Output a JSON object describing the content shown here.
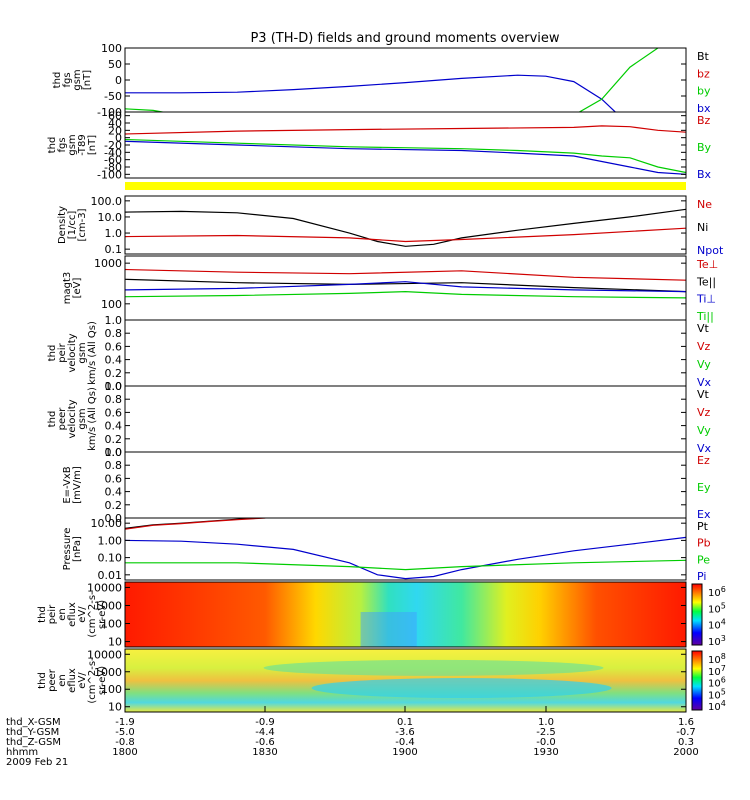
{
  "title": "P3 (TH-D) fields and ground moments overview",
  "colors": {
    "black": "#000000",
    "red": "#d00000",
    "green": "#00cc00",
    "blue": "#0000cc",
    "yellow": "#ffff00"
  },
  "chart_data": {
    "type": "line",
    "x_range": [
      "18:00",
      "20:00"
    ],
    "panels": [
      {
        "ylabel": [
          "thd",
          "fgs",
          "gsm",
          "[nT]"
        ],
        "ylim": [
          -100,
          100
        ],
        "log": false,
        "ticks": [
          "100",
          "50",
          "0",
          "-50",
          "-100"
        ],
        "tick_vals": [
          100,
          50,
          0,
          -50,
          -100
        ],
        "legend": [
          {
            "name": "Bt",
            "color": "#000000"
          },
          {
            "name": "bz",
            "color": "#d00000"
          },
          {
            "name": "by",
            "color": "#00cc00"
          },
          {
            "name": "bx",
            "color": "#0000cc"
          }
        ],
        "series": [
          {
            "name": "bx",
            "color": "#0000cc",
            "x": [
              0,
              0.1,
              0.2,
              0.3,
              0.4,
              0.5,
              0.6,
              0.7,
              0.75,
              0.8,
              0.85,
              0.88
            ],
            "y": [
              -40,
              -40,
              -38,
              -30,
              -20,
              -8,
              5,
              15,
              12,
              -5,
              -60,
              -110
            ]
          },
          {
            "name": "by",
            "color": "#00cc00",
            "x": [
              0,
              0.05,
              0.1,
              0.8,
              0.85,
              0.9,
              0.95
            ],
            "y": [
              -90,
              -95,
              -110,
              -110,
              -60,
              40,
              100
            ]
          }
        ]
      },
      {
        "ylabel": [
          "thd",
          "fgs",
          "gsm",
          "-T89",
          "[nT]"
        ],
        "ylim": [
          -110,
          70
        ],
        "log": false,
        "ticks": [
          "60",
          "40",
          "20",
          "0",
          "-20",
          "-40",
          "-60",
          "-80",
          "-100"
        ],
        "tick_vals": [
          60,
          40,
          20,
          0,
          -20,
          -40,
          -60,
          -80,
          -100
        ],
        "legend": [
          {
            "name": "Bz",
            "color": "#d00000"
          },
          {
            "name": "By",
            "color": "#00cc00"
          },
          {
            "name": "Bx",
            "color": "#0000cc"
          }
        ],
        "series": [
          {
            "name": "Bz",
            "color": "#d00000",
            "x": [
              0,
              0.2,
              0.4,
              0.6,
              0.8,
              0.85,
              0.9,
              0.95,
              1
            ],
            "y": [
              10,
              18,
              22,
              25,
              28,
              32,
              30,
              20,
              15
            ]
          },
          {
            "name": "By",
            "color": "#00cc00",
            "x": [
              0,
              0.2,
              0.4,
              0.6,
              0.7,
              0.8,
              0.85,
              0.9,
              0.95,
              1
            ],
            "y": [
              -5,
              -15,
              -25,
              -30,
              -35,
              -42,
              -50,
              -55,
              -80,
              -95
            ]
          },
          {
            "name": "Bx",
            "color": "#0000cc",
            "x": [
              0,
              0.2,
              0.4,
              0.6,
              0.7,
              0.8,
              0.85,
              0.9,
              0.95,
              1
            ],
            "y": [
              -10,
              -20,
              -30,
              -35,
              -42,
              -50,
              -65,
              -80,
              -95,
              -100
            ]
          }
        ]
      },
      {
        "ylabel": [
          "Density",
          "[1/cc]",
          "[cm-3]"
        ],
        "ylim": [
          0.05,
          200
        ],
        "log": true,
        "ticks": [
          "100.0",
          "10.0",
          "1.0",
          "0.1"
        ],
        "tick_vals": [
          100,
          10,
          1,
          0.1
        ],
        "legend": [
          {
            "name": "Ne",
            "color": "#d00000"
          },
          {
            "name": "Ni",
            "color": "#000000"
          },
          {
            "name": "Npot",
            "color": "#0000cc"
          }
        ],
        "series": [
          {
            "name": "Ni",
            "color": "#000000",
            "x": [
              0,
              0.1,
              0.2,
              0.3,
              0.4,
              0.45,
              0.5,
              0.55,
              0.6,
              0.7,
              0.8,
              0.9,
              1
            ],
            "y": [
              20,
              22,
              18,
              8,
              1,
              0.3,
              0.15,
              0.2,
              0.5,
              1.5,
              4,
              10,
              30
            ]
          },
          {
            "name": "Ne",
            "color": "#d00000",
            "x": [
              0,
              0.2,
              0.4,
              0.5,
              0.6,
              0.8,
              1
            ],
            "y": [
              0.6,
              0.7,
              0.5,
              0.3,
              0.4,
              0.8,
              2
            ]
          }
        ]
      },
      {
        "ylabel": [
          "magt3",
          "[eV]"
        ],
        "ylim": [
          40,
          1500
        ],
        "log": true,
        "ticks": [
          "1000",
          "100"
        ],
        "tick_vals": [
          1000,
          100
        ],
        "legend": [
          {
            "name": "Te⊥",
            "color": "#d00000"
          },
          {
            "name": "Te||",
            "color": "#000000"
          },
          {
            "name": "Ti⊥",
            "color": "#0000cc"
          },
          {
            "name": "Ti||",
            "color": "#00cc00"
          }
        ],
        "series": [
          {
            "name": "Te⊥",
            "color": "#d00000",
            "x": [
              0,
              0.2,
              0.4,
              0.6,
              0.8,
              1
            ],
            "y": [
              700,
              600,
              550,
              650,
              450,
              380
            ]
          },
          {
            "name": "Te||",
            "color": "#000000",
            "x": [
              0,
              0.2,
              0.4,
              0.6,
              0.8,
              1
            ],
            "y": [
              400,
              330,
              300,
              330,
              250,
              200
            ]
          },
          {
            "name": "Ti⊥",
            "color": "#0000cc",
            "x": [
              0,
              0.2,
              0.4,
              0.5,
              0.6,
              0.8,
              1
            ],
            "y": [
              220,
              240,
              300,
              350,
              260,
              220,
              200
            ]
          },
          {
            "name": "Ti||",
            "color": "#00cc00",
            "x": [
              0,
              0.2,
              0.4,
              0.5,
              0.6,
              0.8,
              1
            ],
            "y": [
              150,
              160,
              180,
              200,
              170,
              150,
              140
            ]
          }
        ]
      },
      {
        "ylabel": [
          "thd",
          "peir",
          "velocity",
          "gsm",
          "km/s (All Qs)"
        ],
        "ylim": [
          0,
          1
        ],
        "log": false,
        "ticks": [
          "1.0",
          "0.8",
          "0.6",
          "0.4",
          "0.2",
          "0.0"
        ],
        "tick_vals": [
          1,
          0.8,
          0.6,
          0.4,
          0.2,
          0
        ],
        "legend": [
          {
            "name": "Vt",
            "color": "#000000"
          },
          {
            "name": "Vz",
            "color": "#d00000"
          },
          {
            "name": "Vy",
            "color": "#00cc00"
          },
          {
            "name": "Vx",
            "color": "#0000cc"
          }
        ],
        "series": []
      },
      {
        "ylabel": [
          "thd",
          "peer",
          "velocity",
          "gsm",
          "km/s (All Qs)"
        ],
        "ylim": [
          0,
          1
        ],
        "log": false,
        "ticks": [
          "1.0",
          "0.8",
          "0.6",
          "0.4",
          "0.2",
          "0.0"
        ],
        "tick_vals": [
          1,
          0.8,
          0.6,
          0.4,
          0.2,
          0
        ],
        "legend": [
          {
            "name": "Vt",
            "color": "#000000"
          },
          {
            "name": "Vz",
            "color": "#d00000"
          },
          {
            "name": "Vy",
            "color": "#00cc00"
          },
          {
            "name": "Vx",
            "color": "#0000cc"
          }
        ],
        "series": []
      },
      {
        "ylabel": [
          "E=-VxB",
          "[mV/m]"
        ],
        "ylim": [
          0,
          1
        ],
        "log": false,
        "ticks": [
          "1.0",
          "0.8",
          "0.6",
          "0.4",
          "0.2",
          "0.0"
        ],
        "tick_vals": [
          1,
          0.8,
          0.6,
          0.4,
          0.2,
          0
        ],
        "legend": [
          {
            "name": "Ez",
            "color": "#d00000"
          },
          {
            "name": "Ey",
            "color": "#00cc00"
          },
          {
            "name": "Ex",
            "color": "#0000cc"
          }
        ],
        "series": []
      },
      {
        "ylabel": [
          "Pressure",
          "[nPa]"
        ],
        "ylim": [
          0.005,
          20
        ],
        "log": true,
        "ticks": [
          "10.00",
          "1.00",
          "0.10",
          "0.01"
        ],
        "tick_vals": [
          10,
          1,
          0.1,
          0.01
        ],
        "legend": [
          {
            "name": "Pt",
            "color": "#000000"
          },
          {
            "name": "Pb",
            "color": "#d00000"
          },
          {
            "name": "Pe",
            "color": "#00cc00"
          },
          {
            "name": "Pi",
            "color": "#0000cc"
          }
        ],
        "series": [
          {
            "name": "Pt",
            "color": "#000000",
            "x": [
              0,
              0.05,
              0.1,
              0.15,
              0.2,
              0.25
            ],
            "y": [
              5,
              8,
              10,
              13,
              17,
              21
            ]
          },
          {
            "name": "Pb",
            "color": "#d00000",
            "x": [
              0,
              0.05,
              0.1,
              0.15,
              0.2,
              0.25
            ],
            "y": [
              4.5,
              7.5,
              9.5,
              12.5,
              16,
              20
            ]
          },
          {
            "name": "Pi",
            "color": "#0000cc",
            "x": [
              0,
              0.1,
              0.2,
              0.3,
              0.4,
              0.45,
              0.5,
              0.55,
              0.6,
              0.7,
              0.8,
              0.9,
              1
            ],
            "y": [
              1,
              0.9,
              0.6,
              0.3,
              0.05,
              0.01,
              0.006,
              0.008,
              0.02,
              0.08,
              0.25,
              0.6,
              1.5
            ]
          },
          {
            "name": "Pe",
            "color": "#00cc00",
            "x": [
              0,
              0.2,
              0.4,
              0.5,
              0.6,
              0.8,
              1
            ],
            "y": [
              0.05,
              0.05,
              0.03,
              0.02,
              0.03,
              0.05,
              0.07
            ]
          }
        ]
      },
      {
        "ylabel": [
          "thd",
          "peir",
          "en",
          "eflux",
          "eV/",
          "(cm^2-s-",
          "sr-eV)"
        ],
        "ylim": [
          5,
          20000
        ],
        "log": true,
        "spectrogram": "ion",
        "ticks": [
          "10000",
          "1000",
          "100",
          "10"
        ],
        "tick_vals": [
          10000,
          1000,
          100,
          10
        ],
        "colorbar_ticks": [
          "10^6",
          "10^5",
          "10^4",
          "10^3"
        ],
        "legend": [],
        "series": []
      },
      {
        "ylabel": [
          "thd",
          "peer",
          "en",
          "eflux",
          "eV/",
          "(cm^2-s-",
          "sr-eV)"
        ],
        "ylim": [
          5,
          20000
        ],
        "log": true,
        "spectrogram": "electron",
        "ticks": [
          "10000",
          "1000",
          "100",
          "10"
        ],
        "tick_vals": [
          10000,
          1000,
          100,
          10
        ],
        "colorbar_ticks": [
          "10^8",
          "10^7",
          "10^6",
          "10^5",
          "10^4"
        ],
        "legend": [],
        "series": []
      }
    ],
    "x_axis": {
      "labels": [
        "thd_X-GSM",
        "thd_Y-GSM",
        "thd_Z-GSM",
        "hhmm",
        "2009 Feb 21"
      ],
      "columns": [
        [
          "-1.9",
          "-5.0",
          "-0.8",
          "1800"
        ],
        [
          "-0.9",
          "-4.4",
          "-0.6",
          "1830"
        ],
        [
          "0.1",
          "-3.6",
          "-0.4",
          "1900"
        ],
        [
          "1.0",
          "-2.5",
          "-0.0",
          "1930"
        ],
        [
          "1.6",
          "-0.7",
          "0.3",
          "2000"
        ]
      ]
    }
  }
}
